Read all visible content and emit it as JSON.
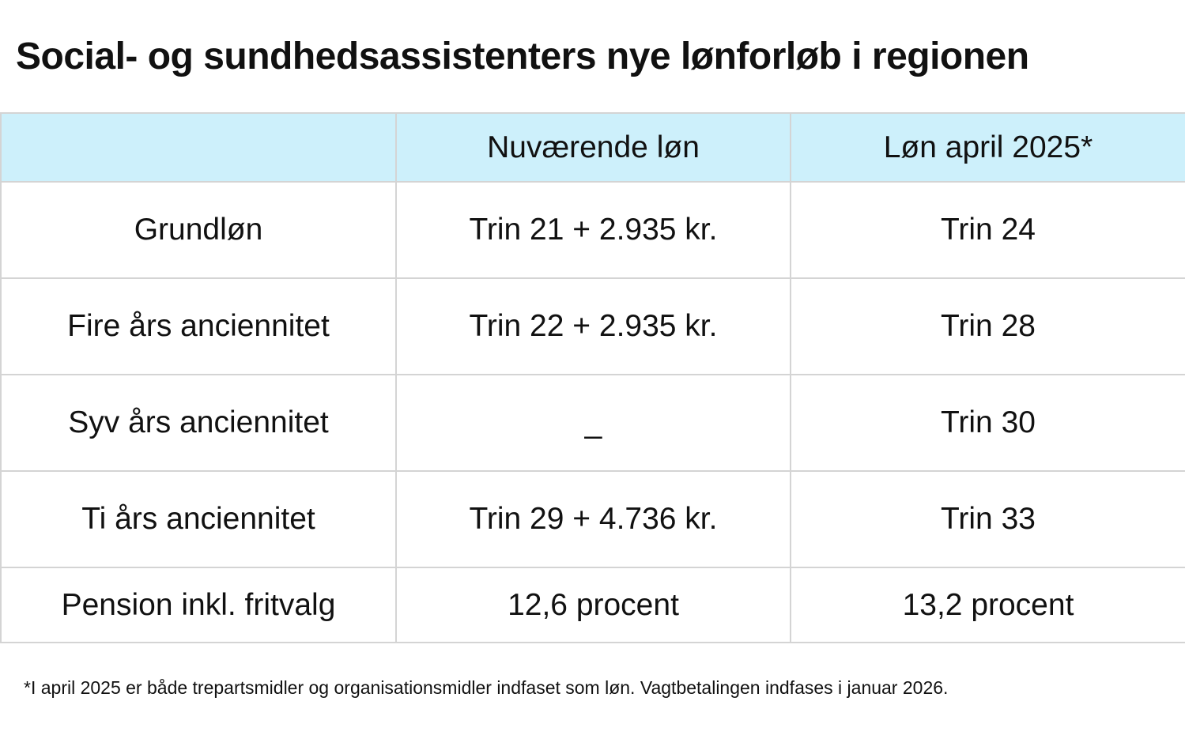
{
  "title": "Social- og sundhedsassistenters nye lønforløb i regionen",
  "table": {
    "header": [
      "Nuværende løn",
      "Løn april 2025*"
    ],
    "rows": [
      [
        "Grundløn",
        "Trin 21 + 2.935 kr.",
        "Trin 24"
      ],
      [
        "Fire års anciennitet",
        "Trin 22 + 2.935 kr.",
        "Trin 28"
      ],
      [
        "Syv års anciennitet",
        "_",
        "Trin 30"
      ],
      [
        "Ti års anciennitet",
        "Trin 29 + 4.736 kr.",
        "Trin 33"
      ],
      [
        "Pension inkl. fritvalg",
        "12,6 procent",
        "13,2 procent"
      ]
    ]
  },
  "footnote": "*I april 2025 er både trepartsmidler og organisationsmidler indfaset som løn. Vagtbetalingen indfases i januar 2026."
}
